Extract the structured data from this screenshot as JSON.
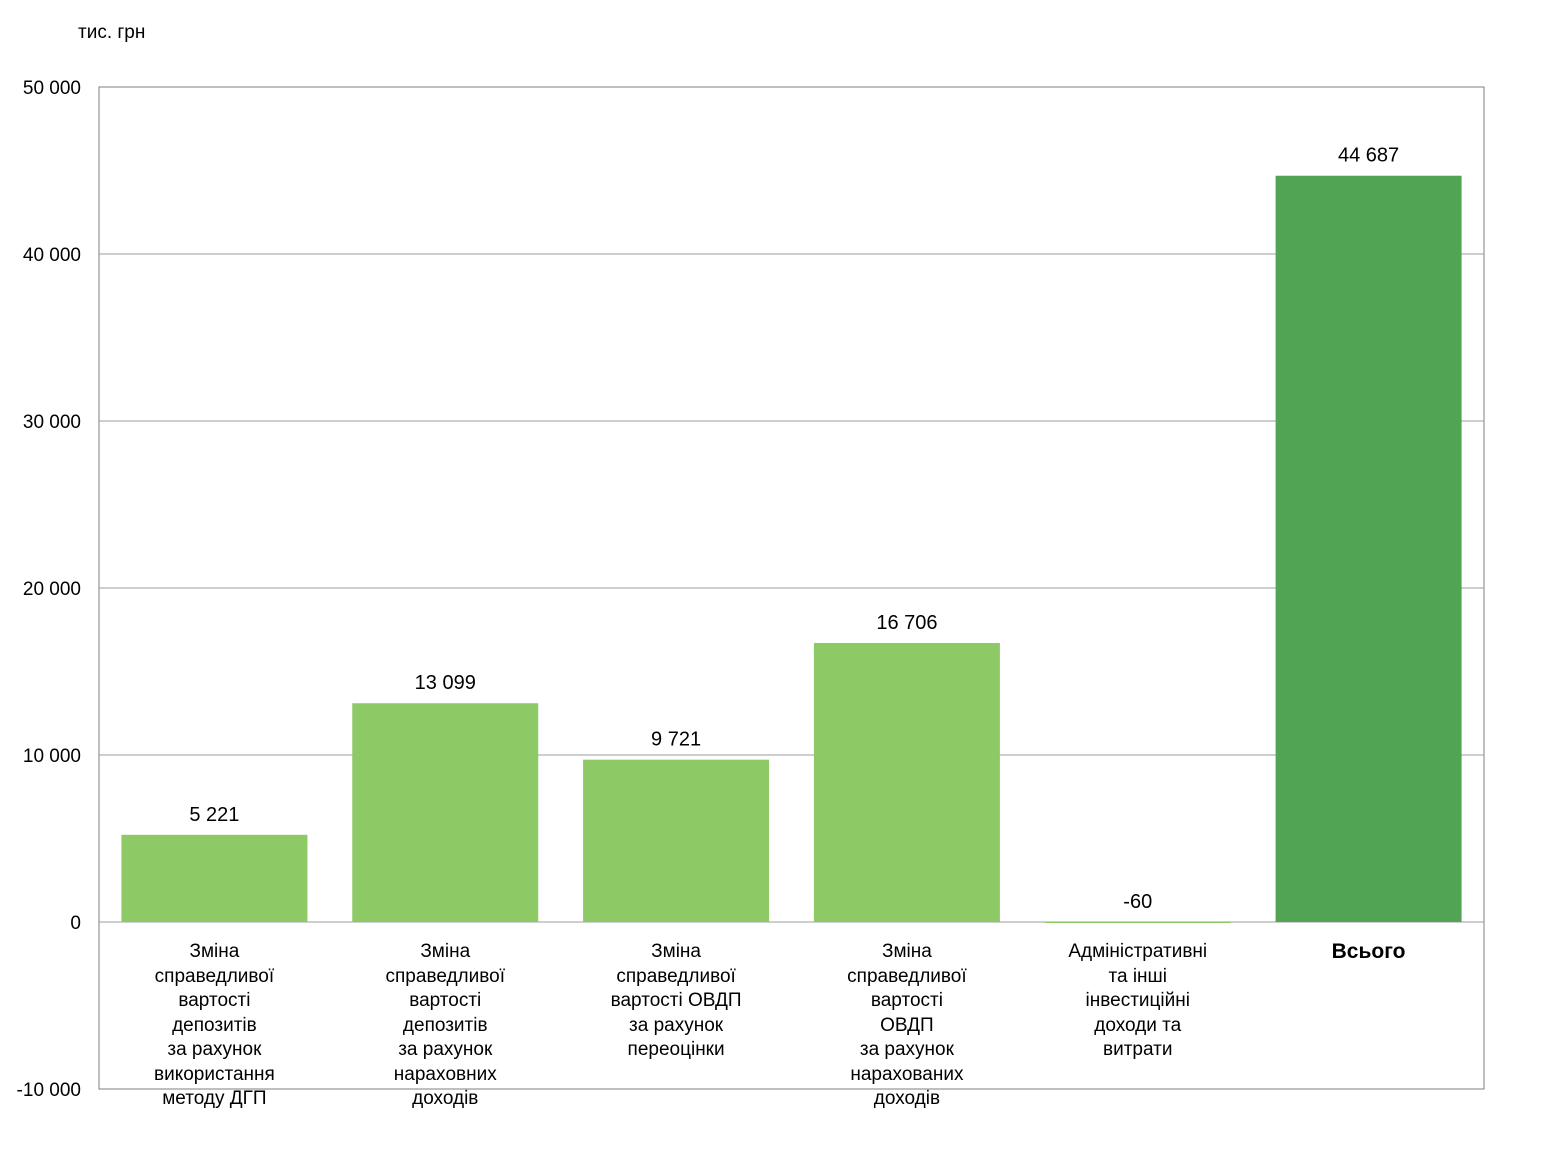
{
  "unit_label": "тис. грн",
  "colors": {
    "bar": "#8DC965",
    "bar_total": "#52A455",
    "grid": "#9E9E9E",
    "axis": "#7F7F7F"
  },
  "chart_data": {
    "type": "bar",
    "title": "",
    "xlabel": "",
    "ylabel": "тис. грн",
    "ylim": [
      -10000,
      50000
    ],
    "yticks": [
      {
        "value": -10000,
        "label": "-10 000"
      },
      {
        "value": 0,
        "label": "0"
      },
      {
        "value": 10000,
        "label": "10 000"
      },
      {
        "value": 20000,
        "label": "20 000"
      },
      {
        "value": 30000,
        "label": "30 000"
      },
      {
        "value": 40000,
        "label": "40 000"
      },
      {
        "value": 50000,
        "label": "50 000"
      }
    ],
    "grid": true,
    "legend": "none",
    "categories": [
      [
        "Зміна",
        "справедливої",
        "вартості",
        "депозитів",
        "за рахунок",
        "використання",
        "методу ДГП"
      ],
      [
        "Зміна",
        "справедливої",
        "вартості",
        "депозитів",
        "за рахунок",
        "нарахoвних",
        "доходів"
      ],
      [
        "Зміна",
        "справедливої",
        "вартості ОВДП",
        "за рахунок",
        "переоцінки"
      ],
      [
        "Зміна",
        "справедливої",
        "вартості",
        "ОВДП",
        "за рахунок",
        "нарахованих",
        "доходів"
      ],
      [
        "Адміністративні",
        "та інші",
        "інвестиційні",
        "доходи та",
        "витрати"
      ],
      [
        "Всього"
      ]
    ],
    "values": [
      5221,
      13099,
      9721,
      16706,
      -60,
      44687
    ],
    "value_labels": [
      "5 221",
      "13 099",
      "9 721",
      "16 706",
      "-60",
      "44 687"
    ],
    "highlight_index": 5
  }
}
